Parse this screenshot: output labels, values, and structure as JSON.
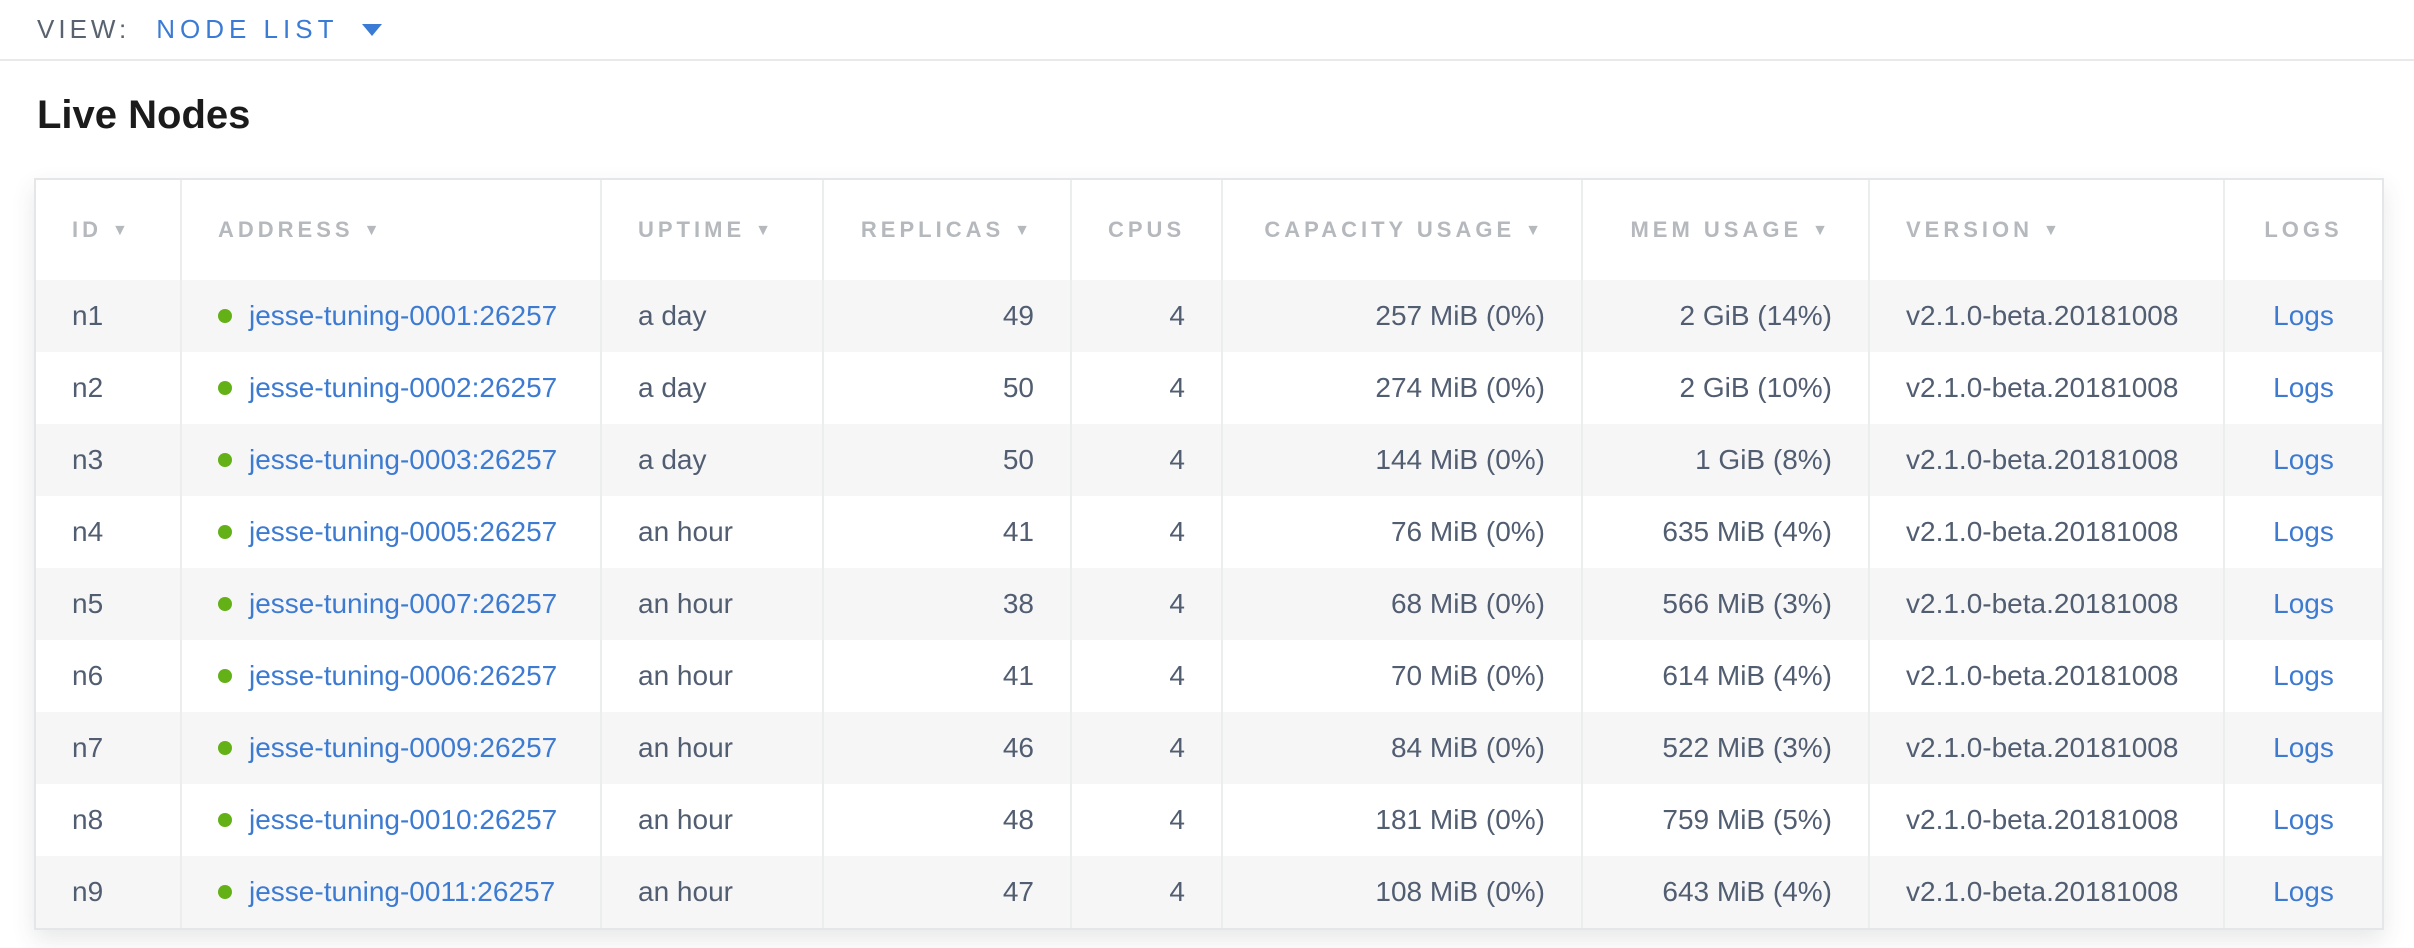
{
  "view_bar": {
    "label": "VIEW:",
    "selected": "NODE LIST"
  },
  "page": {
    "title": "Live Nodes"
  },
  "colors": {
    "accent_blue": "#3a7bd5",
    "link_blue": "#3d7bd2",
    "live_status_green": "#63b117",
    "header_text_gray": "#b5b9bd",
    "body_text_slate": "#515d70",
    "row_stripe_gray": "#f6f6f7"
  },
  "table": {
    "columns": [
      {
        "label": "ID",
        "sort_arrow": true
      },
      {
        "label": "ADDRESS",
        "sort_arrow": true
      },
      {
        "label": "UPTIME",
        "sort_arrow": true
      },
      {
        "label": "REPLICAS",
        "sort_arrow": true
      },
      {
        "label": "CPUS",
        "sort_arrow": false
      },
      {
        "label": "CAPACITY USAGE",
        "sort_arrow": true
      },
      {
        "label": "MEM USAGE",
        "sort_arrow": true
      },
      {
        "label": "VERSION",
        "sort_arrow": true
      },
      {
        "label": "LOGS",
        "sort_arrow": false
      }
    ],
    "sort_arrow_glyph": "▼",
    "rows": [
      {
        "id": "n1",
        "address": "jesse-tuning-0001:26257",
        "uptime": "a day",
        "replicas": "49",
        "cpus": "4",
        "capacity": "257 MiB (0%)",
        "mem": "2 GiB (14%)",
        "version": "v2.1.0-beta.20181008",
        "logs": "Logs"
      },
      {
        "id": "n2",
        "address": "jesse-tuning-0002:26257",
        "uptime": "a day",
        "replicas": "50",
        "cpus": "4",
        "capacity": "274 MiB (0%)",
        "mem": "2 GiB (10%)",
        "version": "v2.1.0-beta.20181008",
        "logs": "Logs"
      },
      {
        "id": "n3",
        "address": "jesse-tuning-0003:26257",
        "uptime": "a day",
        "replicas": "50",
        "cpus": "4",
        "capacity": "144 MiB (0%)",
        "mem": "1 GiB (8%)",
        "version": "v2.1.0-beta.20181008",
        "logs": "Logs"
      },
      {
        "id": "n4",
        "address": "jesse-tuning-0005:26257",
        "uptime": "an hour",
        "replicas": "41",
        "cpus": "4",
        "capacity": "76 MiB (0%)",
        "mem": "635 MiB (4%)",
        "version": "v2.1.0-beta.20181008",
        "logs": "Logs"
      },
      {
        "id": "n5",
        "address": "jesse-tuning-0007:26257",
        "uptime": "an hour",
        "replicas": "38",
        "cpus": "4",
        "capacity": "68 MiB (0%)",
        "mem": "566 MiB (3%)",
        "version": "v2.1.0-beta.20181008",
        "logs": "Logs"
      },
      {
        "id": "n6",
        "address": "jesse-tuning-0006:26257",
        "uptime": "an hour",
        "replicas": "41",
        "cpus": "4",
        "capacity": "70 MiB (0%)",
        "mem": "614 MiB (4%)",
        "version": "v2.1.0-beta.20181008",
        "logs": "Logs"
      },
      {
        "id": "n7",
        "address": "jesse-tuning-0009:26257",
        "uptime": "an hour",
        "replicas": "46",
        "cpus": "4",
        "capacity": "84 MiB (0%)",
        "mem": "522 MiB (3%)",
        "version": "v2.1.0-beta.20181008",
        "logs": "Logs"
      },
      {
        "id": "n8",
        "address": "jesse-tuning-0010:26257",
        "uptime": "an hour",
        "replicas": "48",
        "cpus": "4",
        "capacity": "181 MiB (0%)",
        "mem": "759 MiB (5%)",
        "version": "v2.1.0-beta.20181008",
        "logs": "Logs"
      },
      {
        "id": "n9",
        "address": "jesse-tuning-0011:26257",
        "uptime": "an hour",
        "replicas": "47",
        "cpus": "4",
        "capacity": "108 MiB (0%)",
        "mem": "643 MiB (4%)",
        "version": "v2.1.0-beta.20181008",
        "logs": "Logs"
      }
    ]
  }
}
